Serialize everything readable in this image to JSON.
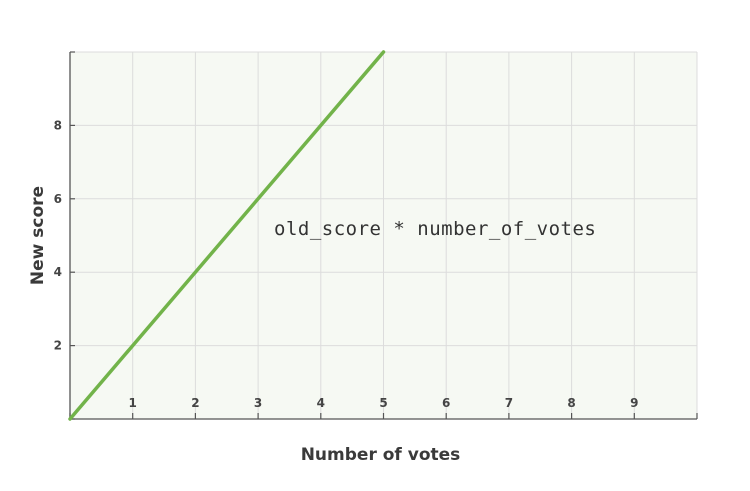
{
  "chart_data": {
    "type": "line",
    "title": "",
    "xlabel": "Number of votes",
    "ylabel": "New score",
    "xlim": [
      0,
      10
    ],
    "ylim": [
      0,
      10
    ],
    "x_ticks": [
      1,
      2,
      3,
      4,
      5,
      6,
      7,
      8,
      9
    ],
    "y_ticks": [
      2,
      4,
      6,
      8
    ],
    "grid": true,
    "annotation": "old_score * number_of_votes",
    "series": [
      {
        "x": [
          0,
          5
        ],
        "y": [
          0,
          10
        ],
        "color": "#72b34a"
      }
    ],
    "colors": {
      "plot_background": "#f6f9f3",
      "grid": "#dcdcdc",
      "axis": "#555555"
    }
  }
}
